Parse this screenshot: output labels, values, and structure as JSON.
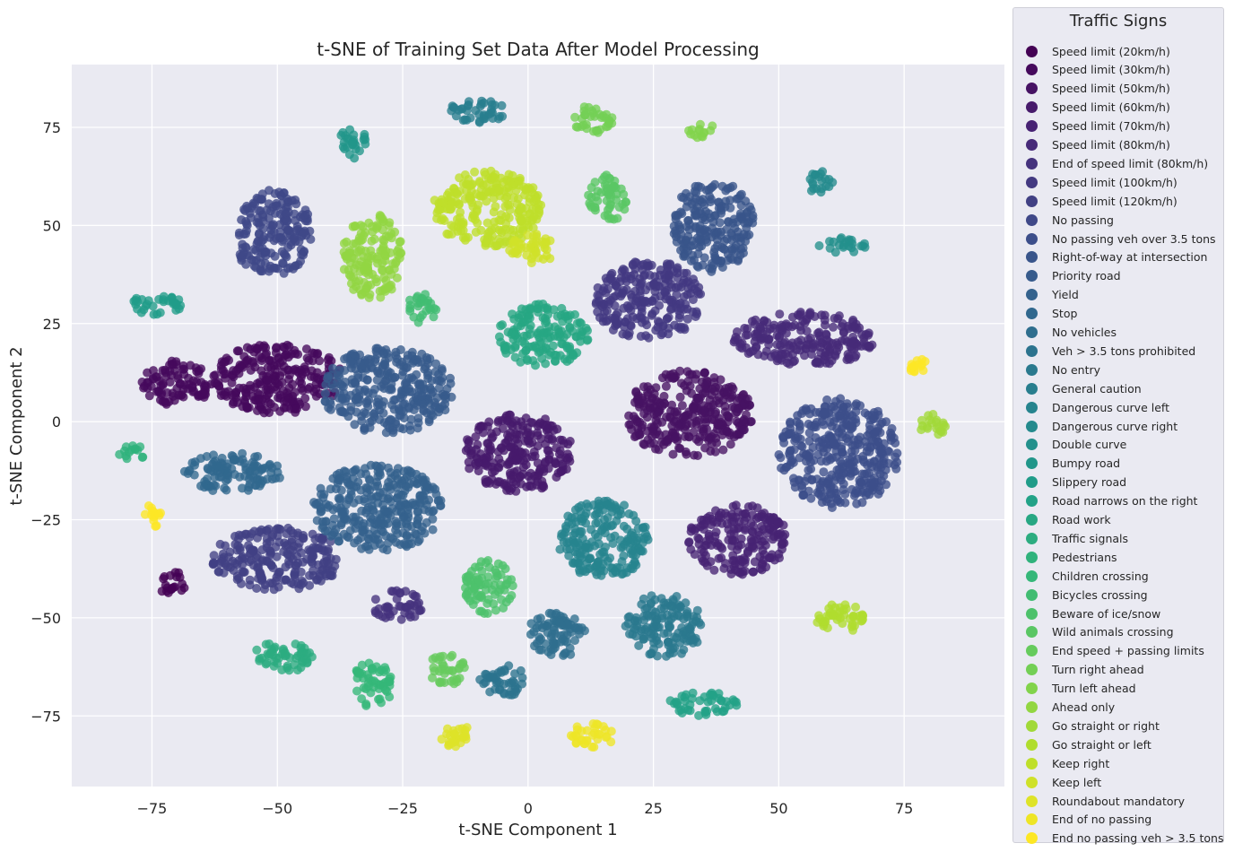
{
  "chart_data": {
    "type": "scatter",
    "title": "t-SNE of Training Set Data After Model Processing",
    "xlabel": "t-SNE Component 1",
    "ylabel": "t-SNE Component 2",
    "xlim": [
      -91,
      95
    ],
    "ylim": [
      -93,
      91
    ],
    "xticks": [
      -75,
      -50,
      -25,
      0,
      25,
      50,
      75
    ],
    "yticks": [
      -75,
      -50,
      -25,
      0,
      25,
      50,
      75
    ],
    "xtick_labels": [
      "−75",
      "−50",
      "−25",
      "0",
      "25",
      "50",
      "75"
    ],
    "ytick_labels": [
      "−75",
      "−50",
      "−25",
      "0",
      "25",
      "50",
      "75"
    ],
    "grid": true,
    "colormap": "viridis",
    "legend": {
      "title": "Traffic Signs",
      "placement": "outside-right",
      "entries": [
        "Speed limit (20km/h)",
        "Speed limit (30km/h)",
        "Speed limit (50km/h)",
        "Speed limit (60km/h)",
        "Speed limit (70km/h)",
        "Speed limit (80km/h)",
        "End of speed limit (80km/h)",
        "Speed limit (100km/h)",
        "Speed limit (120km/h)",
        "No passing",
        "No passing veh over 3.5 tons",
        "Right-of-way at intersection",
        "Priority road",
        "Yield",
        "Stop",
        "No vehicles",
        "Veh > 3.5 tons prohibited",
        "No entry",
        "General caution",
        "Dangerous curve left",
        "Dangerous curve right",
        "Double curve",
        "Bumpy road",
        "Slippery road",
        "Road narrows on the right",
        "Road work",
        "Traffic signals",
        "Pedestrians",
        "Children crossing",
        "Bicycles crossing",
        "Beware of ice/snow",
        "Wild animals crossing",
        "End speed + passing limits",
        "Turn right ahead",
        "Turn left ahead",
        "Ahead only",
        "Go straight or right",
        "Go straight or left",
        "Keep right",
        "Keep left",
        "Roundabout mandatory",
        "End of no passing",
        "End no passing veh > 3.5 tons"
      ]
    },
    "clusters": [
      {
        "class": 0,
        "cx": -71,
        "cy": -41,
        "rx": 3,
        "ry": 3
      },
      {
        "class": 1,
        "cx": -50,
        "cy": 11,
        "rx": 13,
        "ry": 9
      },
      {
        "class": 1,
        "cx": -70,
        "cy": 10,
        "rx": 7,
        "ry": 6
      },
      {
        "class": 2,
        "cx": 32,
        "cy": 2,
        "rx": 13,
        "ry": 11
      },
      {
        "class": 3,
        "cx": -2,
        "cy": -8,
        "rx": 11,
        "ry": 10
      },
      {
        "class": 4,
        "cx": 42,
        "cy": -30,
        "rx": 10,
        "ry": 9
      },
      {
        "class": 5,
        "cx": 55,
        "cy": 21,
        "rx": 14,
        "ry": 7
      },
      {
        "class": 6,
        "cx": -26,
        "cy": -47,
        "rx": 5,
        "ry": 4
      },
      {
        "class": 7,
        "cx": 24,
        "cy": 31,
        "rx": 11,
        "ry": 10
      },
      {
        "class": 8,
        "cx": -50,
        "cy": -35,
        "rx": 13,
        "ry": 8
      },
      {
        "class": 9,
        "cx": -51,
        "cy": 48,
        "rx": 8,
        "ry": 11
      },
      {
        "class": 10,
        "cx": 62,
        "cy": -8,
        "rx": 12,
        "ry": 14
      },
      {
        "class": 11,
        "cx": 37,
        "cy": 50,
        "rx": 8,
        "ry": 12
      },
      {
        "class": 12,
        "cx": -28,
        "cy": 8,
        "rx": 13,
        "ry": 11
      },
      {
        "class": 13,
        "cx": -30,
        "cy": -22,
        "rx": 13,
        "ry": 11
      },
      {
        "class": 14,
        "cx": -59,
        "cy": -13,
        "rx": 10,
        "ry": 5
      },
      {
        "class": 15,
        "cx": 6,
        "cy": -54,
        "rx": 6,
        "ry": 6
      },
      {
        "class": 16,
        "cx": -5,
        "cy": -66,
        "rx": 5,
        "ry": 4
      },
      {
        "class": 17,
        "cx": 27,
        "cy": -52,
        "rx": 8,
        "ry": 8
      },
      {
        "class": 18,
        "cx": -10,
        "cy": 79,
        "rx": 6,
        "ry": 3
      },
      {
        "class": 19,
        "cx": 15,
        "cy": -30,
        "rx": 9,
        "ry": 10
      },
      {
        "class": 20,
        "cx": 58,
        "cy": 61,
        "rx": 3,
        "ry": 3
      },
      {
        "class": 21,
        "cx": 63,
        "cy": 45,
        "rx": 5,
        "ry": 2
      },
      {
        "class": 22,
        "cx": -35,
        "cy": 71,
        "rx": 3,
        "ry": 4
      },
      {
        "class": 23,
        "cx": -74,
        "cy": 30,
        "rx": 5,
        "ry": 3
      },
      {
        "class": 24,
        "cx": 35,
        "cy": -72,
        "rx": 7,
        "ry": 3
      },
      {
        "class": 25,
        "cx": 3,
        "cy": 22,
        "rx": 9,
        "ry": 8
      },
      {
        "class": 26,
        "cx": -49,
        "cy": -60,
        "rx": 6,
        "ry": 4
      },
      {
        "class": 27,
        "cx": -79,
        "cy": -8,
        "rx": 3,
        "ry": 2
      },
      {
        "class": 28,
        "cx": -31,
        "cy": -67,
        "rx": 4,
        "ry": 6
      },
      {
        "class": 29,
        "cx": -21,
        "cy": 29,
        "rx": 3,
        "ry": 4
      },
      {
        "class": 30,
        "cx": -8,
        "cy": -42,
        "rx": 5,
        "ry": 7
      },
      {
        "class": 31,
        "cx": 16,
        "cy": 57,
        "rx": 4,
        "ry": 6
      },
      {
        "class": 32,
        "cx": -16,
        "cy": -63,
        "rx": 4,
        "ry": 4
      },
      {
        "class": 33,
        "cx": 13,
        "cy": 77,
        "rx": 4,
        "ry": 4
      },
      {
        "class": 34,
        "cx": 35,
        "cy": 74,
        "rx": 3,
        "ry": 2
      },
      {
        "class": 35,
        "cx": -31,
        "cy": 42,
        "rx": 6,
        "ry": 11
      },
      {
        "class": 36,
        "cx": 81,
        "cy": -1,
        "rx": 3,
        "ry": 3
      },
      {
        "class": 37,
        "cx": 62,
        "cy": -50,
        "rx": 5,
        "ry": 4
      },
      {
        "class": 38,
        "cx": -8,
        "cy": 54,
        "rx": 11,
        "ry": 10
      },
      {
        "class": 39,
        "cx": 1,
        "cy": 44,
        "rx": 5,
        "ry": 4
      },
      {
        "class": 40,
        "cx": -14,
        "cy": -80,
        "rx": 4,
        "ry": 3
      },
      {
        "class": 41,
        "cx": 13,
        "cy": -80,
        "rx": 5,
        "ry": 3
      },
      {
        "class": 42,
        "cx": -75,
        "cy": -24,
        "rx": 2,
        "ry": 3
      },
      {
        "class": 42,
        "cx": 78,
        "cy": 14,
        "rx": 2,
        "ry": 2
      }
    ]
  }
}
